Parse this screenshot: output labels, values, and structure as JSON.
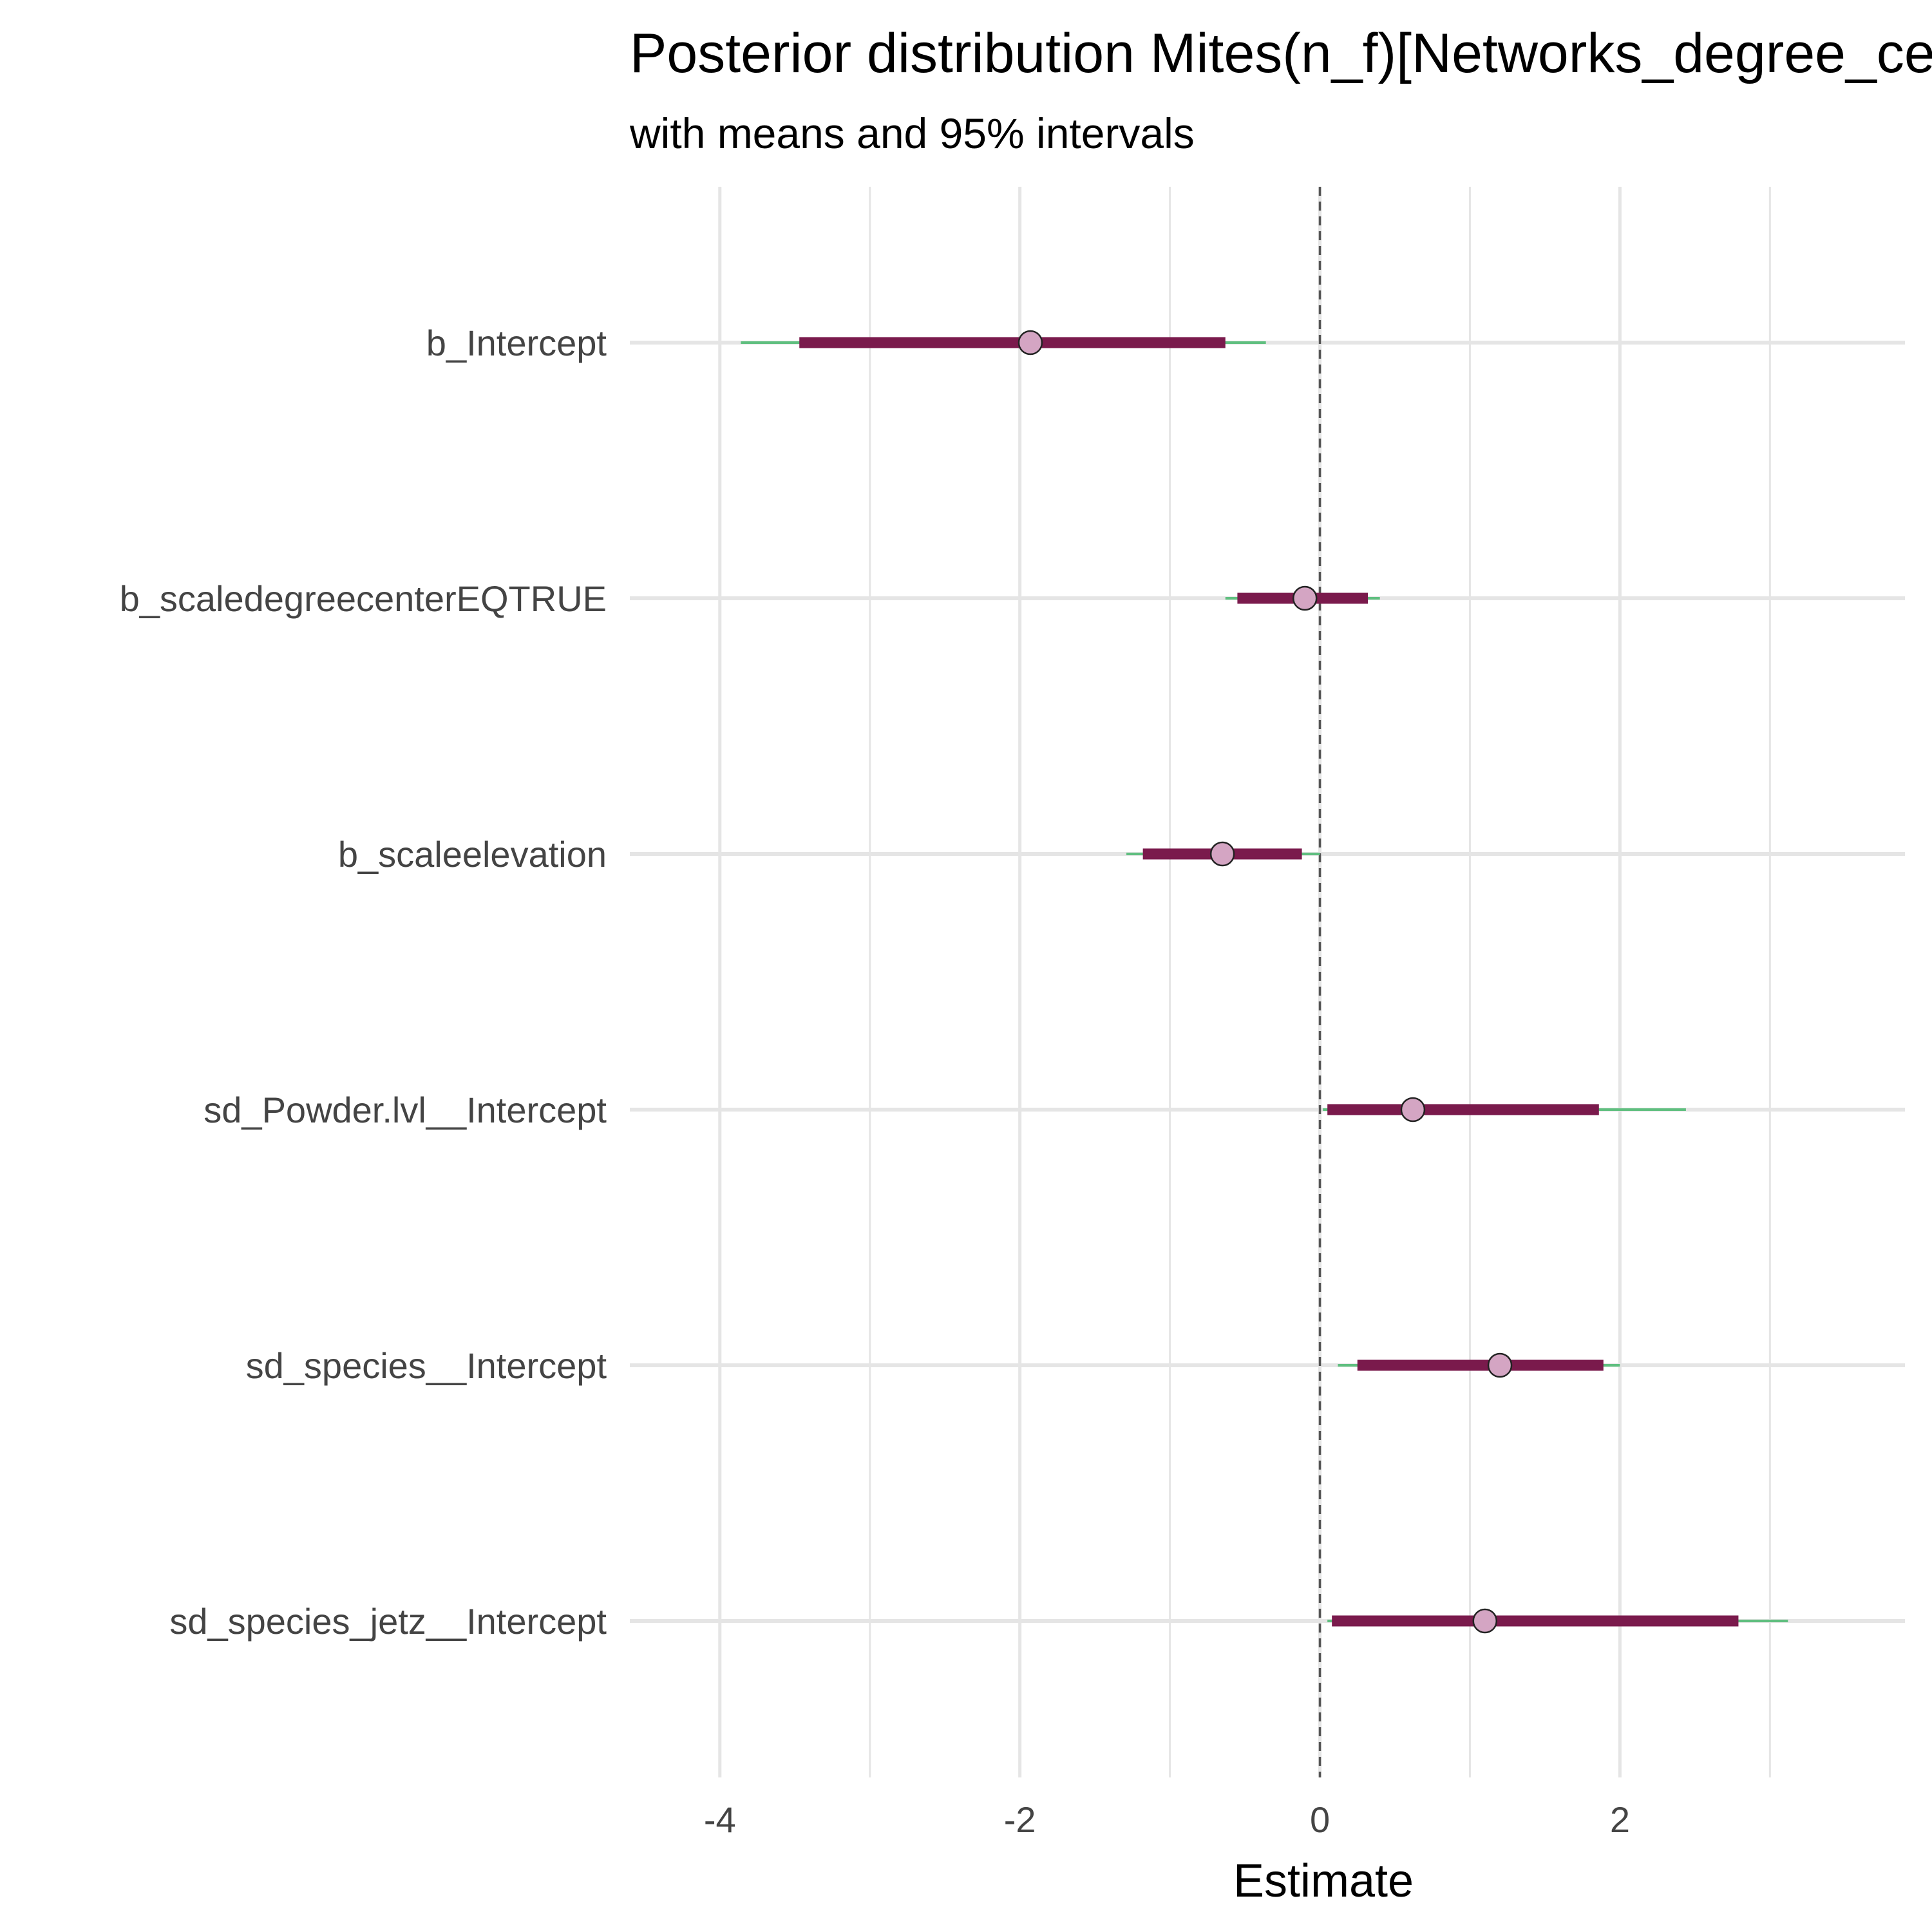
{
  "chart_data": {
    "type": "interval",
    "title": "Posterior distribution Mites(n_f)[Networks_degree_center]",
    "subtitle": "with means and 95% intervals",
    "xlabel": "Estimate",
    "ylabel": "",
    "xlim": [
      -4.6,
      3.9
    ],
    "x_ticks": [
      -4,
      -2,
      0,
      2
    ],
    "x_tick_labels": [
      "-4",
      "-2",
      "0",
      "2"
    ],
    "reference_line": 0,
    "grid": true,
    "colors": {
      "outer_interval": "#5fbf7f",
      "inner_interval": "#7a1a4c",
      "point_fill": "#d4a5c3",
      "point_stroke": "#222222",
      "grid": "#e5e5e5",
      "reference_line": "#555555"
    },
    "parameters": [
      {
        "name": "b_Intercept",
        "mean": -1.93,
        "inner": [
          -3.47,
          -0.63
        ],
        "outer": [
          -3.86,
          -0.36
        ]
      },
      {
        "name": "b_scaledegreecenterEQTRUE",
        "mean": -0.1,
        "inner": [
          -0.55,
          0.32
        ],
        "outer": [
          -0.63,
          0.4
        ]
      },
      {
        "name": "b_scaleelevation",
        "mean": -0.65,
        "inner": [
          -1.18,
          -0.12
        ],
        "outer": [
          -1.29,
          0.0
        ]
      },
      {
        "name": "sd_Powder.lvl__Intercept",
        "mean": 0.62,
        "inner": [
          0.05,
          1.86
        ],
        "outer": [
          0.02,
          2.44
        ]
      },
      {
        "name": "sd_species__Intercept",
        "mean": 1.2,
        "inner": [
          0.25,
          1.89
        ],
        "outer": [
          0.12,
          2.0
        ]
      },
      {
        "name": "sd_species_jetz__Intercept",
        "mean": 1.1,
        "inner": [
          0.08,
          2.79
        ],
        "outer": [
          0.05,
          3.12
        ]
      }
    ]
  }
}
